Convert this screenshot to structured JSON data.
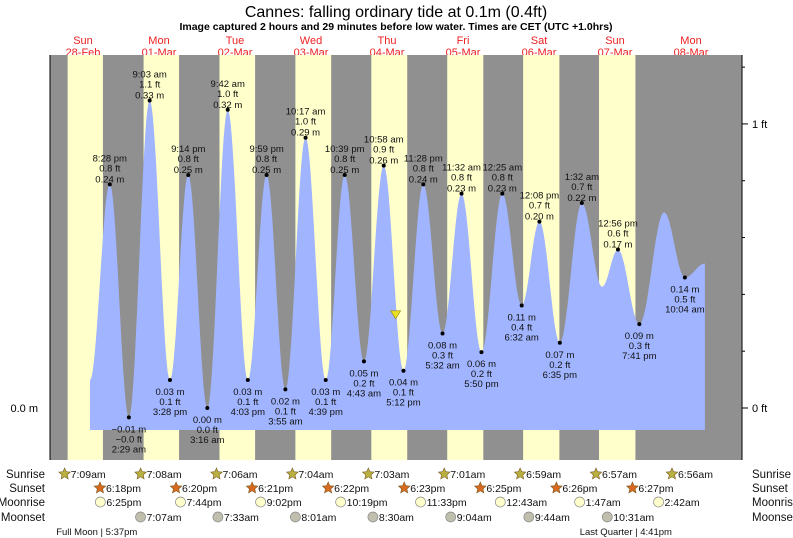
{
  "title": "Cannes: falling  ordinary tide at 0.1m (0.4ft)",
  "subtitle": "Image captured 2 hours and 29 minutes before low water. Times are CET (UTC +1.0hrs)",
  "colors": {
    "night": "#909090",
    "day": "#ffffcc",
    "water": "#a0b4ff",
    "dayLabel": "#ee2222",
    "sunrise": "#b8b040",
    "sunset": "#d86a20",
    "moonrise": "#ffffcc",
    "moonset": "#c0bfae",
    "now": "#e8e020"
  },
  "chart_data": {
    "type": "area",
    "title": "Cannes: falling  ordinary tide at 0.1m (0.4ft)",
    "days": [
      {
        "offset": -1,
        "dow": "Sun",
        "date": "28-Feb"
      },
      {
        "offset": 0,
        "dow": "Mon",
        "date": "01-Mar"
      },
      {
        "offset": 1,
        "dow": "Tue",
        "date": "02-Mar"
      },
      {
        "offset": 2,
        "dow": "Wed",
        "date": "03-Mar"
      },
      {
        "offset": 3,
        "dow": "Thu",
        "date": "04-Mar"
      },
      {
        "offset": 4,
        "dow": "Fri",
        "date": "05-Mar"
      },
      {
        "offset": 5,
        "dow": "Sat",
        "date": "06-Mar"
      },
      {
        "offset": 6,
        "dow": "Sun",
        "date": "07-Mar"
      },
      {
        "offset": 7,
        "dow": "Mon",
        "date": "08-Mar"
      }
    ],
    "y_axis": {
      "left_label": "0.0 m",
      "right_labels": [
        {
          "ft": 0,
          "text": "0 ft"
        },
        {
          "ft": 1,
          "text": "1 ft"
        }
      ],
      "unit": "m"
    },
    "curve_start": {
      "hours": -9.8,
      "height": 0.03
    },
    "curve_end": {
      "hours": 184.4,
      "height": 0.155
    },
    "tides": [
      {
        "day": -1,
        "type": "high",
        "time": "8:28 pm",
        "ft": "0.8 ft",
        "m": "0.24 m",
        "height": 0.24
      },
      {
        "day": 0,
        "type": "low",
        "time": "2:29 am",
        "ft": "−0.0 ft",
        "m": "−0.01 m",
        "height": -0.01
      },
      {
        "day": 0,
        "type": "high",
        "time": "9:03 am",
        "ft": "1.1 ft",
        "m": "0.33 m",
        "height": 0.33
      },
      {
        "day": 0,
        "type": "low",
        "time": "3:28 pm",
        "ft": "0.1 ft",
        "m": "0.03 m",
        "height": 0.03
      },
      {
        "day": 0,
        "type": "high",
        "time": "9:14 pm",
        "ft": "0.8 ft",
        "m": "0.25 m",
        "height": 0.25
      },
      {
        "day": 1,
        "type": "low",
        "time": "3:16 am",
        "ft": "0.0 ft",
        "m": "0.00 m",
        "height": 0.0
      },
      {
        "day": 1,
        "type": "high",
        "time": "9:42 am",
        "ft": "1.0 ft",
        "m": "0.32 m",
        "height": 0.32
      },
      {
        "day": 1,
        "type": "low",
        "time": "4:03 pm",
        "ft": "0.1 ft",
        "m": "0.03 m",
        "height": 0.03
      },
      {
        "day": 1,
        "type": "high",
        "time": "9:59 pm",
        "ft": "0.8 ft",
        "m": "0.25 m",
        "height": 0.25
      },
      {
        "day": 2,
        "type": "low",
        "time": "3:55 am",
        "ft": "0.1 ft",
        "m": "0.02 m",
        "height": 0.02
      },
      {
        "day": 2,
        "type": "high",
        "time": "10:17 am",
        "ft": "1.0 ft",
        "m": "0.29 m",
        "height": 0.29
      },
      {
        "day": 2,
        "type": "low",
        "time": "4:39 pm",
        "ft": "0.1 ft",
        "m": "0.03 m",
        "height": 0.03
      },
      {
        "day": 2,
        "type": "high",
        "time": "10:39 pm",
        "ft": "0.8 ft",
        "m": "0.25 m",
        "height": 0.25
      },
      {
        "day": 3,
        "type": "low",
        "time": "4:43 am",
        "ft": "0.2 ft",
        "m": "0.05 m",
        "height": 0.05
      },
      {
        "day": 3,
        "type": "high",
        "time": "10:58 am",
        "ft": "0.9 ft",
        "m": "0.26 m",
        "height": 0.26
      },
      {
        "day": 3,
        "type": "low",
        "time": "5:12 pm",
        "ft": "0.1 ft",
        "m": "0.04 m",
        "height": 0.04
      },
      {
        "day": 3,
        "type": "high",
        "time": "11:28 pm",
        "ft": "0.8 ft",
        "m": "0.24 m",
        "height": 0.24
      },
      {
        "day": 4,
        "type": "low",
        "time": "5:32 am",
        "ft": "0.3 ft",
        "m": "0.08 m",
        "height": 0.08
      },
      {
        "day": 4,
        "type": "high",
        "time": "11:32 am",
        "ft": "0.8 ft",
        "m": "0.23 m",
        "height": 0.23
      },
      {
        "day": 4,
        "type": "low",
        "time": "5:50 pm",
        "ft": "0.2 ft",
        "m": "0.06 m",
        "height": 0.06
      },
      {
        "day": 5,
        "type": "high",
        "time": "12:25 am",
        "ft": "0.8 ft",
        "m": "0.23 m",
        "height": 0.23
      },
      {
        "day": 5,
        "type": "low",
        "time": "6:32 am",
        "ft": "0.4 ft",
        "m": "0.11 m",
        "height": 0.11
      },
      {
        "day": 5,
        "type": "high",
        "time": "12:08 pm",
        "ft": "0.7 ft",
        "m": "0.20 m",
        "height": 0.2
      },
      {
        "day": 5,
        "type": "low",
        "time": "6:35 pm",
        "ft": "0.2 ft",
        "m": "0.07 m",
        "height": 0.07
      },
      {
        "day": 6,
        "type": "high",
        "time": "1:32 am",
        "ft": "0.7 ft",
        "m": "0.22 m",
        "height": 0.22
      },
      {
        "type": "low",
        "hours": 151.9,
        "height": 0.13,
        "labeled": false
      },
      {
        "day": 6,
        "type": "high",
        "time": "12:56 pm",
        "ft": "0.6 ft",
        "m": "0.17 m",
        "height": 0.17
      },
      {
        "day": 6,
        "type": "low",
        "time": "7:41 pm",
        "ft": "0.3 ft",
        "m": "0.09 m",
        "height": 0.09
      },
      {
        "type": "high",
        "hours": 171.5,
        "height": 0.21,
        "labeled": false
      },
      {
        "day": 7,
        "type": "low",
        "time": "10:04 am",
        "ft": "0.5 ft",
        "m": "0.14 m",
        "height": 0.14
      }
    ],
    "now": {
      "hours": 86.72,
      "height": 0.1
    }
  },
  "rows": {
    "labels": {
      "sunrise": "Sunrise",
      "sunset": "Sunset",
      "moonrise": "Moonrise",
      "moonset": "Moonset"
    },
    "sunrise": [
      {
        "day": -1,
        "time": "7:09am"
      },
      {
        "day": 0,
        "time": "7:08am"
      },
      {
        "day": 1,
        "time": "7:06am"
      },
      {
        "day": 2,
        "time": "7:04am"
      },
      {
        "day": 3,
        "time": "7:03am"
      },
      {
        "day": 4,
        "time": "7:01am"
      },
      {
        "day": 5,
        "time": "6:59am"
      },
      {
        "day": 6,
        "time": "6:57am"
      },
      {
        "day": 7,
        "time": "6:56am"
      }
    ],
    "sunset": [
      {
        "day": -1,
        "time": "6:18pm"
      },
      {
        "day": 0,
        "time": "6:20pm"
      },
      {
        "day": 1,
        "time": "6:21pm"
      },
      {
        "day": 2,
        "time": "6:22pm"
      },
      {
        "day": 3,
        "time": "6:23pm"
      },
      {
        "day": 4,
        "time": "6:25pm"
      },
      {
        "day": 5,
        "time": "6:26pm"
      },
      {
        "day": 6,
        "time": "6:27pm"
      }
    ],
    "moonrise": [
      {
        "day": -1,
        "time": "6:25pm"
      },
      {
        "day": 0,
        "time": "7:44pm"
      },
      {
        "day": 1,
        "time": "9:02pm"
      },
      {
        "day": 2,
        "time": "10:19pm"
      },
      {
        "day": 3,
        "time": "11:33pm"
      },
      {
        "day": 5,
        "time": "12:43am"
      },
      {
        "day": 6,
        "time": "1:47am"
      },
      {
        "day": 7,
        "time": "2:42am"
      }
    ],
    "moonset": [
      {
        "day": 0,
        "time": "7:07am"
      },
      {
        "day": 1,
        "time": "7:33am"
      },
      {
        "day": 2,
        "time": "8:01am"
      },
      {
        "day": 3,
        "time": "8:30am"
      },
      {
        "day": 4,
        "time": "9:04am"
      },
      {
        "day": 5,
        "time": "9:44am"
      },
      {
        "day": 6,
        "time": "10:31am"
      }
    ],
    "phases": [
      {
        "day": -1,
        "time": "5:37pm",
        "text": "Full Moon | 5:37pm"
      },
      {
        "day": 6,
        "time": "4:41pm",
        "text": "Last Quarter | 4:41pm"
      }
    ]
  }
}
